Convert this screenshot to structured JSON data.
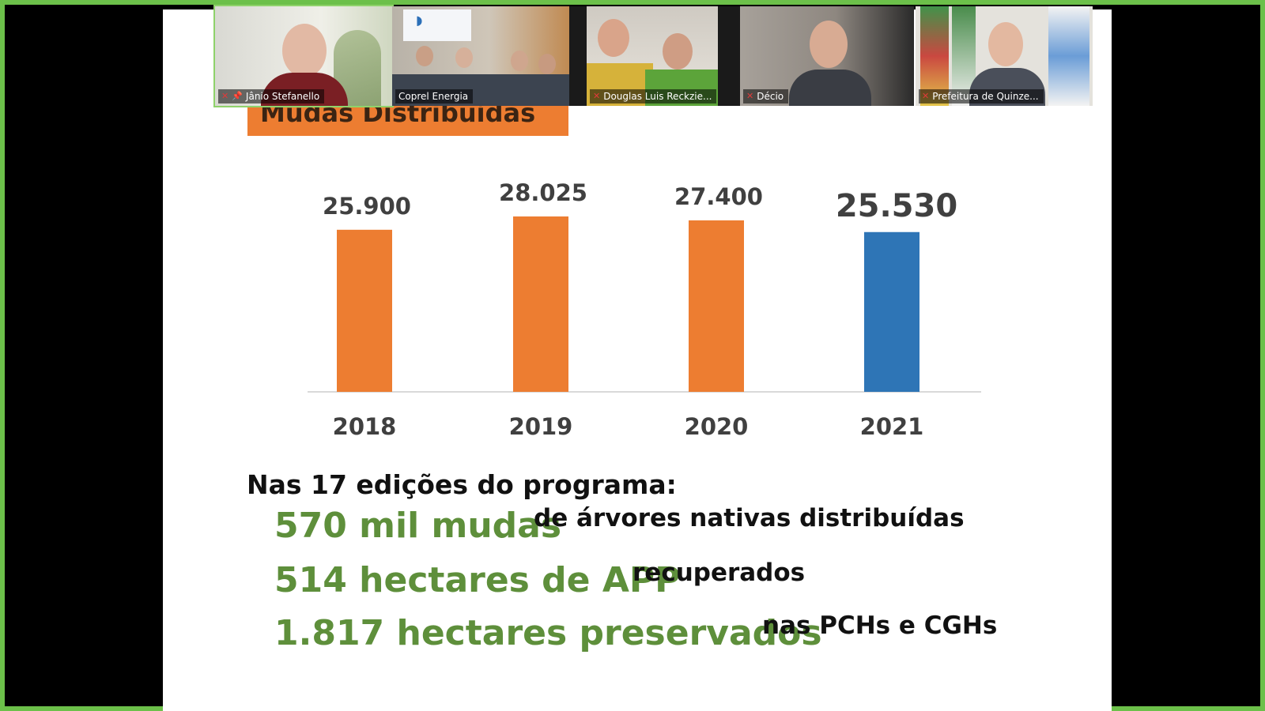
{
  "colors": {
    "accent_orange": "#ed7d31",
    "accent_blue": "#2e75b6",
    "stat_green": "#5e8f3b",
    "frame_green": "#6cc04a"
  },
  "slide": {
    "title": "Mudas Distribuídas",
    "intro": "Nas 17 edições do programa:",
    "stats": [
      {
        "big": "570 mil mudas",
        "small": "de árvores nativas distribuídas"
      },
      {
        "big": "514 hectares de APP",
        "small": "recuperados"
      },
      {
        "big": "1.817 hectares preservados",
        "small": "nas PCHs e CGHs"
      }
    ]
  },
  "chart_data": {
    "type": "bar",
    "categories": [
      "2018",
      "2019",
      "2020",
      "2021"
    ],
    "values": [
      25900,
      28025,
      27400,
      25530
    ],
    "labels": [
      "25.900",
      "28.025",
      "27.400",
      "25.530"
    ],
    "colors": [
      "#ed7d31",
      "#ed7d31",
      "#ed7d31",
      "#2e75b6"
    ],
    "ylim": [
      0,
      28025
    ],
    "grid": false
  },
  "participants": [
    {
      "name": "Jânio Stefanello",
      "muted": true,
      "pinned": true,
      "active": true,
      "icon": "mic-muted-icon"
    },
    {
      "name": "Coprel Energia",
      "muted": false,
      "pinned": false,
      "active": false,
      "icon": "none"
    },
    {
      "name": "Douglas Luis Reckzie...",
      "muted": true,
      "pinned": false,
      "active": false,
      "icon": "mic-muted-icon"
    },
    {
      "name": "Décio",
      "muted": true,
      "pinned": false,
      "active": false,
      "icon": "mic-muted-icon"
    },
    {
      "name": "Prefeitura de Quinze...",
      "muted": true,
      "pinned": false,
      "active": false,
      "icon": "mic-muted-icon"
    }
  ]
}
